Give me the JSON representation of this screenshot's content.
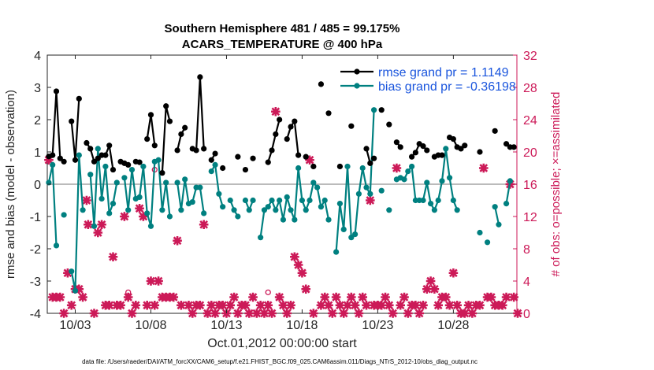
{
  "chart_data": {
    "type": "line",
    "title_line1": "Southern Hemisphere 481 / 485 = 99.175%",
    "title_line2": "ACARS_TEMPERATURE @ 400 hPa",
    "ylabel_left": "rmse and bias (model - observation)",
    "ylabel_right": "# of obs: o=possible; ×=assimilated",
    "xlabel": "Oct.01,2012 00:00:00 start",
    "footer": "data file: /Users/raeder/DAI/ATM_forcXX/CAM6_setup/f.e21.FHIST_BGC.f09_025.CAM6assim.011/Diags_NTrS_2012-10/obs_diag_output.nc",
    "x_range_days": [
      1.15,
      32.2
    ],
    "ylim_left": [
      -4,
      4
    ],
    "ylim_right": [
      0,
      32
    ],
    "left_ticks": [
      -4,
      -3,
      -2,
      -1,
      0,
      1,
      2,
      3,
      4
    ],
    "right_ticks": [
      0,
      4,
      8,
      12,
      16,
      20,
      24,
      28,
      32
    ],
    "x_ticks": [
      {
        "day": 3,
        "label": "10/03"
      },
      {
        "day": 8,
        "label": "10/08"
      },
      {
        "day": 13,
        "label": "10/13"
      },
      {
        "day": 18,
        "label": "10/18"
      },
      {
        "day": 23,
        "label": "10/23"
      },
      {
        "day": 28,
        "label": "10/28"
      }
    ],
    "colors": {
      "rmse": "#000000",
      "bias": "#008080",
      "obs": "#cc1a58",
      "zero": "#bbbbbb",
      "legend_text": "#1a55dd",
      "right_axis": "#cc1a58"
    },
    "series": [
      {
        "name": "rmse grand pr = 1.1149",
        "key": "rmse",
        "values": [
          [
            1.25,
            0.86
          ],
          [
            1.5,
            0.9
          ],
          [
            1.75,
            2.88
          ],
          [
            2.0,
            0.8
          ],
          [
            2.25,
            0.7
          ],
          [
            2.75,
            1.95
          ],
          [
            3.0,
            0.75
          ],
          [
            3.25,
            2.65
          ],
          [
            3.75,
            1.28
          ],
          [
            4.0,
            1.1
          ],
          [
            4.25,
            0.7
          ],
          [
            4.5,
            0.8
          ],
          [
            4.75,
            0.9
          ],
          [
            5.0,
            0.9
          ],
          [
            5.25,
            1.2
          ],
          [
            5.5,
            0.45
          ],
          [
            6.0,
            0.7
          ],
          [
            6.25,
            0.65
          ],
          [
            6.5,
            0.6
          ],
          [
            7.0,
            0.7
          ],
          [
            7.25,
            0.68
          ],
          [
            7.75,
            1.4
          ],
          [
            8.0,
            2.15
          ],
          [
            8.25,
            1.2
          ],
          [
            8.75,
            0.35
          ],
          [
            9.0,
            2.42
          ],
          [
            9.25,
            1.95
          ],
          [
            9.75,
            1.05
          ],
          [
            10.0,
            1.55
          ],
          [
            10.25,
            1.75
          ],
          [
            10.75,
            1.1
          ],
          [
            11.0,
            1.05
          ],
          [
            11.25,
            3.32
          ],
          [
            11.5,
            1.1
          ],
          [
            12.0,
            0.75
          ],
          [
            12.25,
            0.95
          ],
          [
            12.75,
            0.5
          ],
          [
            13.75,
            0.85
          ],
          [
            14.25,
            0.45
          ],
          [
            14.75,
            0.8
          ],
          [
            15.75,
            0.68
          ],
          [
            16.0,
            1.05
          ],
          [
            16.25,
            1.55
          ],
          [
            16.5,
            2.0
          ],
          [
            17.0,
            1.4
          ],
          [
            17.25,
            1.78
          ],
          [
            17.5,
            1.95
          ],
          [
            17.75,
            0.9
          ],
          [
            18.25,
            0.85
          ],
          [
            18.75,
            0.55
          ],
          [
            19.25,
            3.1
          ],
          [
            19.75,
            2.2
          ],
          [
            20.5,
            0.55
          ],
          [
            21.25,
            1.8
          ],
          [
            22.25,
            1.1
          ],
          [
            22.5,
            0.65
          ],
          [
            22.75,
            0.8
          ],
          [
            23.25,
            2.3
          ],
          [
            23.75,
            1.85
          ],
          [
            24.25,
            1.3
          ],
          [
            24.5,
            1.15
          ],
          [
            25.25,
            0.85
          ],
          [
            25.5,
            0.98
          ],
          [
            25.75,
            1.25
          ],
          [
            26.0,
            1.18
          ],
          [
            26.25,
            1.05
          ],
          [
            26.75,
            0.85
          ],
          [
            27.0,
            0.9
          ],
          [
            27.25,
            0.9
          ],
          [
            27.75,
            1.45
          ],
          [
            28.0,
            1.4
          ],
          [
            28.25,
            1.15
          ],
          [
            28.5,
            1.1
          ],
          [
            28.75,
            1.2
          ],
          [
            29.75,
            1.0
          ],
          [
            30.75,
            1.65
          ],
          [
            31.5,
            1.25
          ],
          [
            31.75,
            1.15
          ],
          [
            32.0,
            1.15
          ]
        ]
      },
      {
        "name": "bias grand pr = -0.36198",
        "key": "bias",
        "values": [
          [
            1.25,
            0.05
          ],
          [
            1.5,
            0.6
          ],
          [
            1.75,
            -1.9
          ],
          [
            2.25,
            -0.95
          ],
          [
            2.75,
            -2.7
          ],
          [
            3.0,
            -3.3
          ],
          [
            3.25,
            0.9
          ],
          [
            3.5,
            -0.8
          ],
          [
            4.0,
            0.3
          ],
          [
            4.25,
            -1.3
          ],
          [
            4.5,
            1.1
          ],
          [
            4.75,
            -0.45
          ],
          [
            5.0,
            0.55
          ],
          [
            5.25,
            -0.9
          ],
          [
            5.5,
            -0.6
          ],
          [
            5.75,
            0.05
          ],
          [
            6.25,
            0.2
          ],
          [
            6.5,
            -0.8
          ],
          [
            6.75,
            0.45
          ],
          [
            7.0,
            -0.45
          ],
          [
            7.25,
            -0.4
          ],
          [
            7.5,
            0.55
          ],
          [
            7.75,
            -0.9
          ],
          [
            8.0,
            -1.3
          ],
          [
            8.25,
            0.7
          ],
          [
            8.5,
            0.75
          ],
          [
            8.75,
            -0.8
          ],
          [
            9.0,
            0.05
          ],
          [
            9.25,
            -1.0
          ],
          [
            9.75,
            0.05
          ],
          [
            10.0,
            -0.8
          ],
          [
            10.25,
            0.15
          ],
          [
            10.5,
            -0.6
          ],
          [
            10.75,
            -0.55
          ],
          [
            11.0,
            -0.1
          ],
          [
            11.25,
            -0.1
          ],
          [
            11.5,
            -0.9
          ],
          [
            12.0,
            0.4
          ],
          [
            12.25,
            0.6
          ],
          [
            12.5,
            -0.3
          ],
          [
            12.75,
            -0.7
          ],
          [
            13.25,
            -0.5
          ],
          [
            13.5,
            -0.8
          ],
          [
            13.75,
            -1.0
          ],
          [
            14.25,
            -0.5
          ],
          [
            14.5,
            -0.8
          ],
          [
            14.75,
            -0.5
          ],
          [
            15.25,
            -1.65
          ],
          [
            15.5,
            -0.8
          ],
          [
            15.75,
            -0.7
          ],
          [
            16.0,
            -0.5
          ],
          [
            16.25,
            -0.8
          ],
          [
            16.5,
            -0.5
          ],
          [
            16.75,
            -1.1
          ],
          [
            17.0,
            -0.4
          ],
          [
            17.25,
            -0.8
          ],
          [
            17.5,
            -1.1
          ],
          [
            17.75,
            0.5
          ],
          [
            18.0,
            -0.5
          ],
          [
            18.25,
            -0.8
          ],
          [
            18.5,
            -0.5
          ],
          [
            18.75,
            0.05
          ],
          [
            19.0,
            -0.1
          ],
          [
            19.25,
            -0.7
          ],
          [
            19.5,
            -0.5
          ],
          [
            19.75,
            -1.1
          ],
          [
            20.25,
            -2.1
          ],
          [
            20.5,
            -0.6
          ],
          [
            20.75,
            -1.4
          ],
          [
            21.0,
            0.55
          ],
          [
            21.25,
            -1.65
          ],
          [
            21.5,
            -1.55
          ],
          [
            21.75,
            -0.3
          ],
          [
            22.0,
            0.5
          ],
          [
            22.25,
            -0.1
          ],
          [
            22.5,
            -0.3
          ],
          [
            22.75,
            2.3
          ],
          [
            23.25,
            -0.2
          ],
          [
            23.75,
            -0.8
          ],
          [
            24.25,
            0.15
          ],
          [
            24.5,
            0.2
          ],
          [
            24.75,
            0.15
          ],
          [
            25.0,
            0.4
          ],
          [
            25.25,
            0.55
          ],
          [
            25.5,
            -0.5
          ],
          [
            25.75,
            -0.5
          ],
          [
            26.0,
            -0.5
          ],
          [
            26.25,
            0.05
          ],
          [
            26.5,
            -0.6
          ],
          [
            26.75,
            -0.8
          ],
          [
            27.0,
            -0.5
          ],
          [
            27.25,
            0.1
          ],
          [
            27.5,
            1.1
          ],
          [
            27.75,
            0.2
          ],
          [
            28.0,
            -0.5
          ],
          [
            28.25,
            -0.8
          ],
          [
            29.75,
            -1.5
          ],
          [
            30.25,
            -1.8
          ],
          [
            30.75,
            -0.7
          ],
          [
            31.0,
            -1.25
          ],
          [
            31.5,
            -0.6
          ],
          [
            31.75,
            0.1
          ]
        ]
      }
    ],
    "obs_assimilated": [
      [
        1.25,
        19
      ],
      [
        1.5,
        2
      ],
      [
        1.75,
        2
      ],
      [
        2.0,
        2
      ],
      [
        2.25,
        0
      ],
      [
        2.5,
        5
      ],
      [
        2.75,
        1
      ],
      [
        3.0,
        3
      ],
      [
        3.25,
        3
      ],
      [
        3.5,
        2
      ],
      [
        3.75,
        14
      ],
      [
        3.85,
        11
      ],
      [
        4.25,
        0
      ],
      [
        4.5,
        10
      ],
      [
        4.75,
        11
      ],
      [
        5.0,
        1
      ],
      [
        5.25,
        1
      ],
      [
        5.5,
        7
      ],
      [
        5.75,
        1
      ],
      [
        6.0,
        1
      ],
      [
        6.25,
        12
      ],
      [
        6.5,
        2
      ],
      [
        6.75,
        0
      ],
      [
        7.0,
        1
      ],
      [
        7.25,
        13
      ],
      [
        7.5,
        12
      ],
      [
        7.75,
        1
      ],
      [
        8.0,
        4
      ],
      [
        8.25,
        1
      ],
      [
        8.5,
        4
      ],
      [
        8.75,
        2
      ],
      [
        9.0,
        2
      ],
      [
        9.25,
        2
      ],
      [
        9.5,
        2
      ],
      [
        9.75,
        9
      ],
      [
        10.0,
        1
      ],
      [
        10.5,
        1
      ],
      [
        10.75,
        0
      ],
      [
        11.0,
        1
      ],
      [
        11.25,
        1
      ],
      [
        11.5,
        11
      ],
      [
        11.75,
        0
      ],
      [
        12.0,
        1
      ],
      [
        12.25,
        0
      ],
      [
        12.5,
        1
      ],
      [
        12.75,
        1
      ],
      [
        13.0,
        0
      ],
      [
        13.25,
        1
      ],
      [
        13.5,
        2
      ],
      [
        13.75,
        0
      ],
      [
        14.0,
        1
      ],
      [
        14.25,
        1
      ],
      [
        14.5,
        0
      ],
      [
        14.75,
        2
      ],
      [
        15.0,
        0
      ],
      [
        15.25,
        1
      ],
      [
        15.5,
        0
      ],
      [
        15.75,
        1
      ],
      [
        16.0,
        0
      ],
      [
        16.25,
        25
      ],
      [
        16.5,
        2
      ],
      [
        16.75,
        1
      ],
      [
        17.0,
        0
      ],
      [
        17.25,
        1
      ],
      [
        17.5,
        7
      ],
      [
        17.75,
        6
      ],
      [
        18.0,
        5
      ],
      [
        18.25,
        3
      ],
      [
        18.5,
        19
      ],
      [
        18.75,
        0
      ],
      [
        19.25,
        1
      ],
      [
        19.5,
        2
      ],
      [
        19.75,
        1
      ],
      [
        20.0,
        0
      ],
      [
        20.25,
        2
      ],
      [
        20.5,
        1
      ],
      [
        20.75,
        0
      ],
      [
        21.0,
        1
      ],
      [
        21.25,
        2
      ],
      [
        21.5,
        1
      ],
      [
        21.75,
        0
      ],
      [
        22.0,
        2
      ],
      [
        22.25,
        1
      ],
      [
        22.5,
        14
      ],
      [
        22.75,
        1
      ],
      [
        23.0,
        1
      ],
      [
        23.25,
        1
      ],
      [
        23.5,
        2
      ],
      [
        23.75,
        1
      ],
      [
        24.0,
        0
      ],
      [
        24.25,
        18
      ],
      [
        24.5,
        1
      ],
      [
        24.75,
        2
      ],
      [
        25.0,
        0
      ],
      [
        25.25,
        1
      ],
      [
        25.5,
        1
      ],
      [
        25.75,
        0
      ],
      [
        26.0,
        1
      ],
      [
        26.25,
        3
      ],
      [
        26.5,
        4
      ],
      [
        26.75,
        3
      ],
      [
        27.0,
        1
      ],
      [
        27.25,
        2
      ],
      [
        27.5,
        2
      ],
      [
        27.75,
        1
      ],
      [
        28.0,
        5
      ],
      [
        28.25,
        1
      ],
      [
        28.5,
        0
      ],
      [
        28.75,
        0
      ],
      [
        29.0,
        1
      ],
      [
        29.25,
        0
      ],
      [
        29.5,
        1
      ],
      [
        29.75,
        1
      ],
      [
        30.0,
        18
      ],
      [
        30.25,
        2
      ],
      [
        30.5,
        2
      ],
      [
        30.75,
        1
      ],
      [
        31.0,
        1
      ],
      [
        31.25,
        1
      ],
      [
        31.5,
        2
      ],
      [
        31.75,
        16
      ],
      [
        32.0,
        2
      ],
      [
        32.25,
        0
      ]
    ],
    "obs_possible": [
      [
        6.5,
        2.6
      ],
      [
        8.25,
        17.8
      ],
      [
        15.75,
        2.6
      ]
    ]
  }
}
